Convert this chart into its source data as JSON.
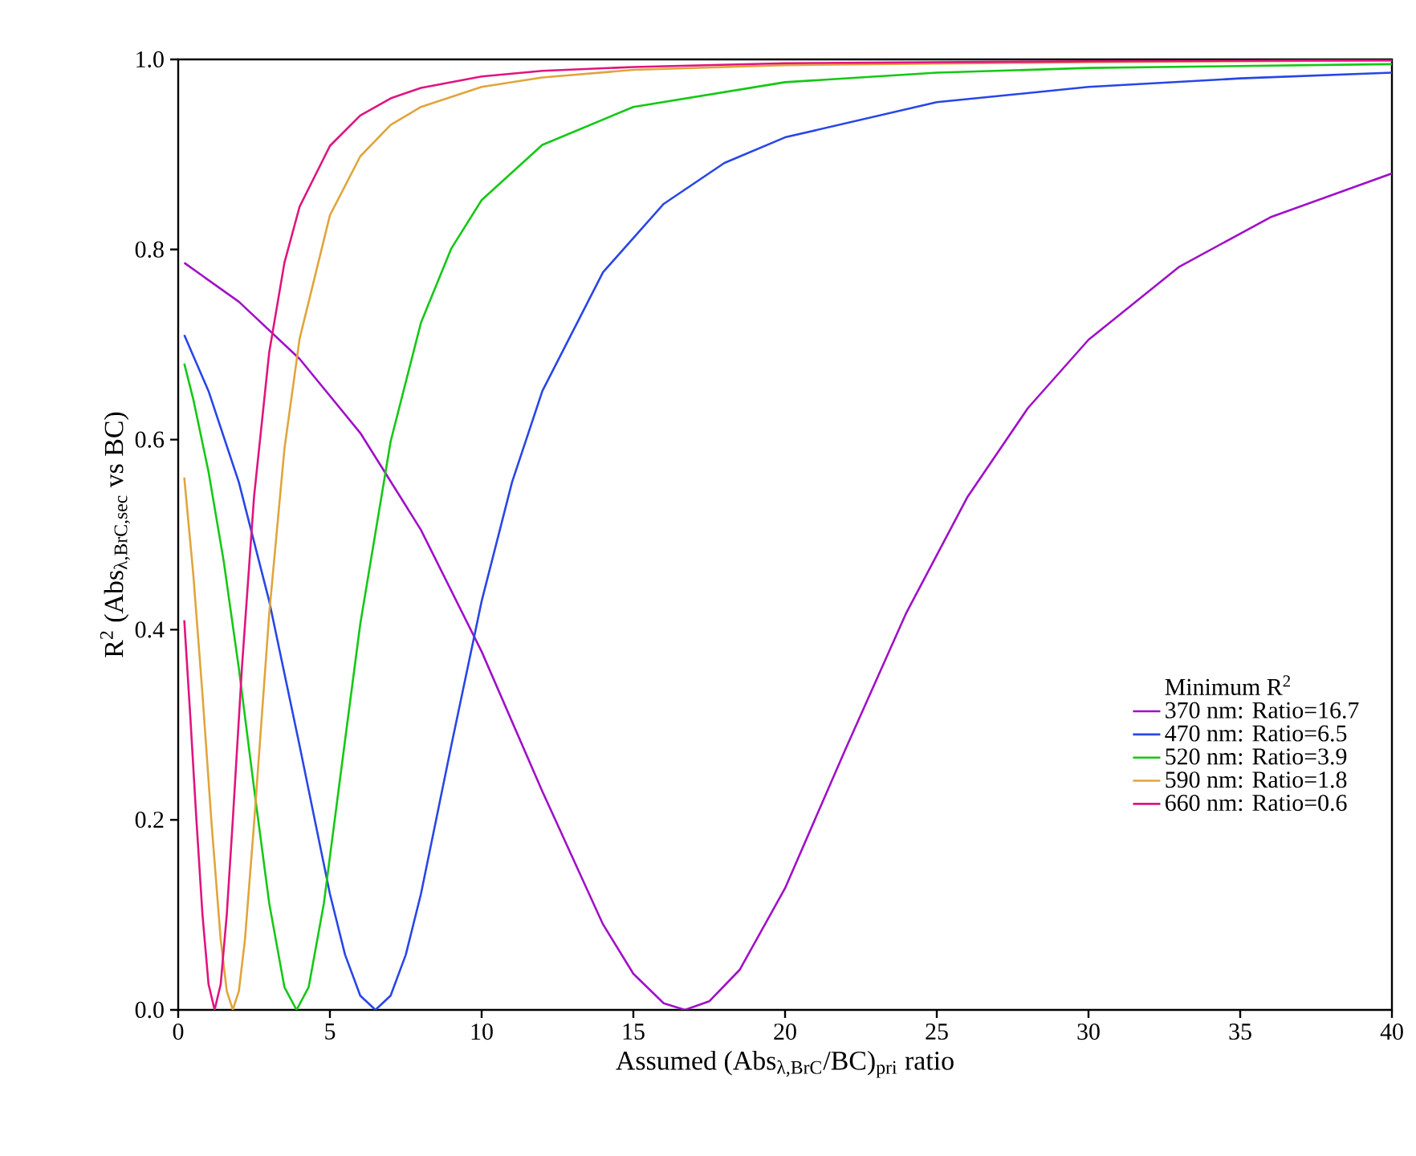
{
  "chart_data": {
    "type": "line",
    "xlabel": "Assumed (Abs$_{λ,BrC}$/BC)$_{pri}$ ratio",
    "ylabel": "R$^{2}$ (Abs$_{λ,BrC,sec}$ vs BC)",
    "legend_title": "Minimum R$^{2}$",
    "legend": "bottom right",
    "marker": "none",
    "line_style": "solid",
    "grid": false,
    "xlim": [
      0,
      40
    ],
    "ylim": [
      0,
      1
    ],
    "xticks": [
      0,
      5,
      10,
      15,
      20,
      25,
      30,
      35,
      40
    ],
    "yticks": [
      {
        "value": 0,
        "label": "0.0"
      },
      {
        "value": 0.2,
        "label": "0.2"
      },
      {
        "value": 0.4,
        "label": "0.4"
      },
      {
        "value": 0.6,
        "label": "0.6"
      },
      {
        "value": 0.8,
        "label": "0.8"
      },
      {
        "value": 1,
        "label": "1.0"
      }
    ],
    "series": [
      {
        "name": "370 nm: Ratio=16.7",
        "color": "#a010c8",
        "x": [
          0.2,
          2,
          4,
          6,
          8,
          10,
          12,
          14,
          15,
          16,
          16.7,
          17.5,
          18.5,
          20,
          22,
          24,
          26,
          28,
          30,
          33,
          36,
          40
        ],
        "values": [
          0.786,
          0.745,
          0.685,
          0.607,
          0.505,
          0.377,
          0.23,
          0.09,
          0.038,
          0.007,
          0,
          0.009,
          0.042,
          0.128,
          0.275,
          0.418,
          0.539,
          0.633,
          0.705,
          0.782,
          0.834,
          0.88
        ]
      },
      {
        "name": "470 nm: Ratio=6.5",
        "color": "#2846e6",
        "x": [
          0.2,
          1,
          2,
          3,
          4,
          5,
          5.5,
          6,
          6.5,
          7,
          7.5,
          8,
          9,
          10,
          11,
          12,
          14,
          16,
          18,
          20,
          25,
          30,
          35,
          40
        ],
        "values": [
          0.71,
          0.651,
          0.555,
          0.43,
          0.278,
          0.122,
          0.058,
          0.015,
          0,
          0.015,
          0.058,
          0.122,
          0.278,
          0.43,
          0.555,
          0.651,
          0.776,
          0.848,
          0.891,
          0.918,
          0.955,
          0.971,
          0.98,
          0.986
        ]
      },
      {
        "name": "520 nm: Ratio=3.9",
        "color": "#14c814",
        "x": [
          0.2,
          0.5,
          1,
          1.5,
          2,
          2.5,
          3,
          3.5,
          3.9,
          4.3,
          4.8,
          5.5,
          6,
          7,
          8,
          9,
          10,
          12,
          15,
          20,
          25,
          30,
          40
        ],
        "values": [
          0.68,
          0.642,
          0.566,
          0.472,
          0.359,
          0.233,
          0.112,
          0.024,
          0,
          0.024,
          0.112,
          0.284,
          0.406,
          0.598,
          0.723,
          0.801,
          0.852,
          0.91,
          0.95,
          0.976,
          0.986,
          0.991,
          0.995
        ]
      },
      {
        "name": "590 nm: Ratio=1.8",
        "color": "#e0a53c",
        "x": [
          0.2,
          0.5,
          0.8,
          1.1,
          1.4,
          1.6,
          1.8,
          2,
          2.2,
          2.5,
          3,
          3.5,
          4,
          5,
          6,
          7,
          8,
          10,
          12,
          15,
          20,
          30,
          40
        ],
        "values": [
          0.56,
          0.457,
          0.332,
          0.196,
          0.074,
          0.02,
          0,
          0.02,
          0.074,
          0.196,
          0.417,
          0.59,
          0.706,
          0.836,
          0.898,
          0.931,
          0.95,
          0.971,
          0.981,
          0.989,
          0.994,
          0.997,
          0.999
        ]
      },
      {
        "name": "660 nm: Ratio=0.6",
        "color": "#e0147f",
        "x": [
          0.2,
          0.4,
          0.6,
          0.8,
          1,
          1.2,
          1.4,
          1.6,
          1.8,
          2.1,
          2.5,
          3,
          3.5,
          4,
          5,
          6,
          7,
          8,
          10,
          12,
          15,
          20,
          30,
          40
        ],
        "values": [
          0.41,
          0.308,
          0.2,
          0.1,
          0.027,
          0,
          0.027,
          0.1,
          0.2,
          0.36,
          0.54,
          0.692,
          0.786,
          0.845,
          0.909,
          0.941,
          0.959,
          0.97,
          0.982,
          0.988,
          0.992,
          0.996,
          0.998,
          0.999
        ]
      }
    ]
  }
}
